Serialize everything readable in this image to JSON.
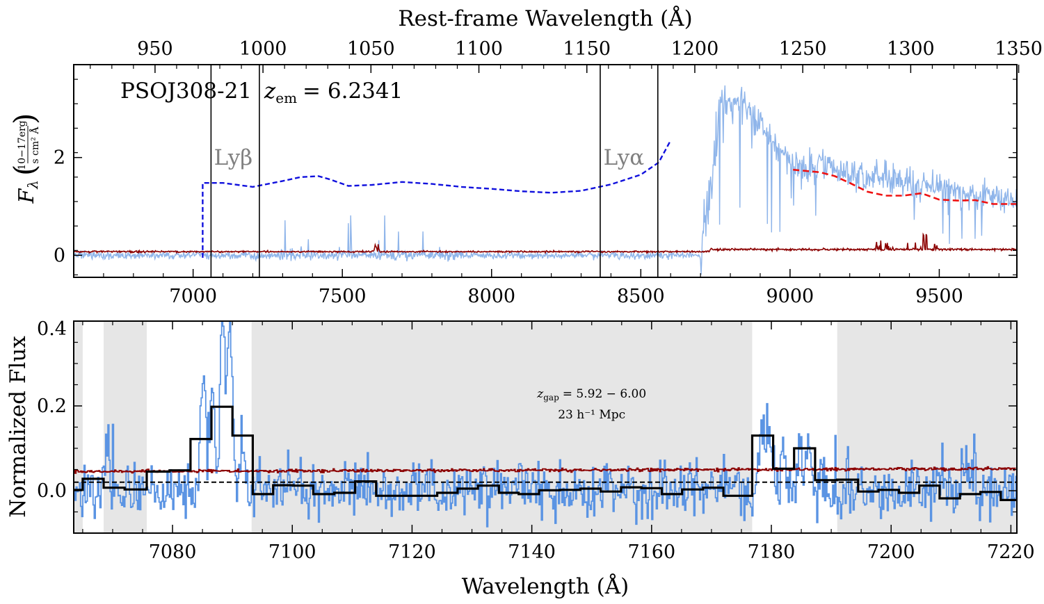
{
  "chart_data": [
    {
      "type": "line",
      "panel": "top",
      "title": "",
      "top_axis_label": "Rest-frame Wavelength (Å)",
      "top_ticks": [
        "950",
        "1000",
        "1050",
        "1100",
        "1150",
        "1200",
        "1250",
        "1300",
        "1350"
      ],
      "top_tick_values": [
        950,
        1000,
        1050,
        1100,
        1150,
        1200,
        1250,
        1300,
        1350
      ],
      "xlim": [
        6600,
        9760
      ],
      "ylim": [
        -0.45,
        3.9
      ],
      "xticks": [
        "7000",
        "7500",
        "8000",
        "8500",
        "9000",
        "9500"
      ],
      "xtick_values": [
        7000,
        7500,
        8000,
        8500,
        9000,
        9500
      ],
      "yticks": [
        "0",
        "2"
      ],
      "ytick_values": [
        0,
        2
      ],
      "ylabel_symbol": "F",
      "ylabel_subscript": "λ",
      "ylabel_numerator": "10−17erg",
      "ylabel_denominator": "s cm² Å",
      "annotation_name": "PSOJ308-21",
      "annotation_z_symbol": "z",
      "annotation_z_sub": "em",
      "annotation_z_value": "= 6.2341",
      "line_labels": [
        {
          "text": "Lyβ",
          "x": 7070,
          "y": 1.85
        },
        {
          "text": "Lyα",
          "x": 8375,
          "y": 1.85
        }
      ],
      "vlines": [
        7060,
        7222,
        8364,
        8557
      ],
      "continuum_break": {
        "x": 7032,
        "y_low": -0.05,
        "y_high": 1.48
      },
      "continuum_fit": [
        [
          7032,
          1.48
        ],
        [
          7100,
          1.48
        ],
        [
          7200,
          1.4
        ],
        [
          7300,
          1.52
        ],
        [
          7360,
          1.6
        ],
        [
          7420,
          1.62
        ],
        [
          7460,
          1.55
        ],
        [
          7520,
          1.42
        ],
        [
          7600,
          1.44
        ],
        [
          7700,
          1.5
        ],
        [
          7800,
          1.46
        ],
        [
          7900,
          1.4
        ],
        [
          8000,
          1.36
        ],
        [
          8100,
          1.31
        ],
        [
          8200,
          1.28
        ],
        [
          8300,
          1.32
        ],
        [
          8400,
          1.45
        ],
        [
          8500,
          1.65
        ],
        [
          8560,
          1.9
        ],
        [
          8600,
          2.35
        ]
      ],
      "continuum_fit_color": "#1010dd",
      "red_fit": [
        [
          9010,
          1.75
        ],
        [
          9100,
          1.7
        ],
        [
          9150,
          1.62
        ],
        [
          9200,
          1.48
        ],
        [
          9260,
          1.3
        ],
        [
          9320,
          1.22
        ],
        [
          9380,
          1.22
        ],
        [
          9440,
          1.27
        ],
        [
          9500,
          1.14
        ],
        [
          9560,
          1.12
        ],
        [
          9620,
          1.13
        ],
        [
          9680,
          1.05
        ],
        [
          9760,
          1.05
        ]
      ],
      "red_fit_color": "#ee1111",
      "flux_color": "#8fb5ea",
      "noise_color": "#8b0000"
    },
    {
      "type": "line",
      "panel": "bottom",
      "title": "",
      "xlabel": "Wavelength (Å)",
      "ylabel": "Normalized Flux",
      "xlim": [
        7063.5,
        7221
      ],
      "ylim": [
        -0.1,
        0.4
      ],
      "xticks": [
        "7080",
        "7100",
        "7120",
        "7140",
        "7160",
        "7180",
        "7200",
        "7220"
      ],
      "xtick_values": [
        7080,
        7100,
        7120,
        7140,
        7160,
        7180,
        7200,
        7220
      ],
      "yticks": [
        "0.0",
        "0.2",
        "0.4"
      ],
      "ytick_values": [
        0.0,
        0.2,
        0.4
      ],
      "gap_label_symbol": "z",
      "gap_label_sub": "gap",
      "gap_label_value": "= 5.92 − 6.00",
      "gap_length_label": "23 h⁻¹ Mpc",
      "gap_label_x": 7150,
      "shaded_regions": [
        [
          7063.5,
          7065
        ],
        [
          7068.5,
          7075.7
        ],
        [
          7093.2,
          7176.8
        ],
        [
          7191,
          7221
        ]
      ],
      "shade_color": "#e6e6e6",
      "threshold": 0.02,
      "binned_flux": [
        {
          "x0": 7063.5,
          "x1": 7065.0,
          "y": 0.002
        },
        {
          "x0": 7065.0,
          "x1": 7068.5,
          "y": 0.028
        },
        {
          "x0": 7068.5,
          "x1": 7072.0,
          "y": 0.007
        },
        {
          "x0": 7072.0,
          "x1": 7075.7,
          "y": 0.003
        },
        {
          "x0": 7075.7,
          "x1": 7079.5,
          "y": 0.045
        },
        {
          "x0": 7079.5,
          "x1": 7083.0,
          "y": 0.048
        },
        {
          "x0": 7083.0,
          "x1": 7086.5,
          "y": 0.122
        },
        {
          "x0": 7086.5,
          "x1": 7090.0,
          "y": 0.198
        },
        {
          "x0": 7090.0,
          "x1": 7093.4,
          "y": 0.13
        },
        {
          "x0": 7093.4,
          "x1": 7096.8,
          "y": -0.008
        },
        {
          "x0": 7096.8,
          "x1": 7100.2,
          "y": 0.013
        },
        {
          "x0": 7100.2,
          "x1": 7103.5,
          "y": 0.012
        },
        {
          "x0": 7103.5,
          "x1": 7107.0,
          "y": -0.008
        },
        {
          "x0": 7107.0,
          "x1": 7110.5,
          "y": -0.005
        },
        {
          "x0": 7110.5,
          "x1": 7114.0,
          "y": 0.022
        },
        {
          "x0": 7114.0,
          "x1": 7117.3,
          "y": -0.012
        },
        {
          "x0": 7117.3,
          "x1": 7120.7,
          "y": -0.012
        },
        {
          "x0": 7120.7,
          "x1": 7124.2,
          "y": -0.012
        },
        {
          "x0": 7124.2,
          "x1": 7127.6,
          "y": -0.005
        },
        {
          "x0": 7127.6,
          "x1": 7131.0,
          "y": 0.005
        },
        {
          "x0": 7131.0,
          "x1": 7134.5,
          "y": 0.012
        },
        {
          "x0": 7134.5,
          "x1": 7137.8,
          "y": -0.005
        },
        {
          "x0": 7137.8,
          "x1": 7141.2,
          "y": -0.008
        },
        {
          "x0": 7141.2,
          "x1": 7144.7,
          "y": 0.001
        },
        {
          "x0": 7144.7,
          "x1": 7148.1,
          "y": 0.002
        },
        {
          "x0": 7148.1,
          "x1": 7151.5,
          "y": 0.005
        },
        {
          "x0": 7151.5,
          "x1": 7154.9,
          "y": -0.002
        },
        {
          "x0": 7154.9,
          "x1": 7158.3,
          "y": 0.008
        },
        {
          "x0": 7158.3,
          "x1": 7161.7,
          "y": 0.006
        },
        {
          "x0": 7161.7,
          "x1": 7165.1,
          "y": -0.008
        },
        {
          "x0": 7165.1,
          "x1": 7168.6,
          "y": 0.003
        },
        {
          "x0": 7168.6,
          "x1": 7172.0,
          "y": 0.007
        },
        {
          "x0": 7172.0,
          "x1": 7176.8,
          "y": -0.012
        },
        {
          "x0": 7176.8,
          "x1": 7180.3,
          "y": 0.13
        },
        {
          "x0": 7180.3,
          "x1": 7183.8,
          "y": 0.052
        },
        {
          "x0": 7183.8,
          "x1": 7187.3,
          "y": 0.1
        },
        {
          "x0": 7187.3,
          "x1": 7191.0,
          "y": 0.025
        },
        {
          "x0": 7191.0,
          "x1": 7194.5,
          "y": 0.026
        },
        {
          "x0": 7194.5,
          "x1": 7197.9,
          "y": -0.002
        },
        {
          "x0": 7197.9,
          "x1": 7201.3,
          "y": 0.002
        },
        {
          "x0": 7201.3,
          "x1": 7204.7,
          "y": -0.005
        },
        {
          "x0": 7204.7,
          "x1": 7208.1,
          "y": 0.012
        },
        {
          "x0": 7208.1,
          "x1": 7211.5,
          "y": -0.018
        },
        {
          "x0": 7211.5,
          "x1": 7214.9,
          "y": -0.008
        },
        {
          "x0": 7214.9,
          "x1": 7218.3,
          "y": -0.003
        },
        {
          "x0": 7218.3,
          "x1": 7221.0,
          "y": -0.022
        }
      ],
      "emission_peaks": [
        {
          "x": 7069.0,
          "h": 0.15
        },
        {
          "x": 7085.0,
          "h": 0.28
        },
        {
          "x": 7086.5,
          "h": 0.29
        },
        {
          "x": 7088.3,
          "h": 0.42
        },
        {
          "x": 7089.5,
          "h": 0.43
        },
        {
          "x": 7091.5,
          "h": 0.14
        },
        {
          "x": 7178.3,
          "h": 0.14
        },
        {
          "x": 7179.4,
          "h": 0.17
        },
        {
          "x": 7182.0,
          "h": 0.09
        },
        {
          "x": 7184.8,
          "h": 0.14
        },
        {
          "x": 7186.2,
          "h": 0.12
        },
        {
          "x": 7212.0,
          "h": 0.08
        }
      ],
      "bin_color": "#000000",
      "flux_color": "#5b94e3",
      "noise_color": "#8b0000"
    }
  ]
}
